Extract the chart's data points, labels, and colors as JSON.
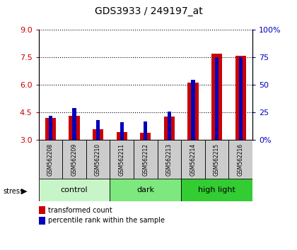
{
  "title": "GDS3933 / 249197_at",
  "samples": [
    "GSM562208",
    "GSM562209",
    "GSM562210",
    "GSM562211",
    "GSM562212",
    "GSM562213",
    "GSM562214",
    "GSM562215",
    "GSM562216"
  ],
  "transformed_count": [
    4.22,
    4.32,
    3.58,
    3.42,
    3.38,
    4.28,
    6.12,
    7.72,
    7.58
  ],
  "percentile_rank": [
    22,
    29,
    18,
    16,
    17,
    26,
    55,
    75,
    75
  ],
  "ylim_left": [
    3,
    9
  ],
  "ylim_right": [
    0,
    100
  ],
  "yticks_left": [
    3,
    4.5,
    6,
    7.5,
    9
  ],
  "yticks_right": [
    0,
    25,
    50,
    75,
    100
  ],
  "groups": [
    {
      "label": "control",
      "indices": [
        0,
        1,
        2
      ],
      "color": "#c8f5c8"
    },
    {
      "label": "dark",
      "indices": [
        3,
        4,
        5
      ],
      "color": "#7de87d"
    },
    {
      "label": "high light",
      "indices": [
        6,
        7,
        8
      ],
      "color": "#33cc33"
    }
  ],
  "red_color": "#cc0000",
  "blue_color": "#0000bb",
  "left_tick_color": "#cc0000",
  "right_tick_color": "#0000bb",
  "right_tick_labels": [
    "0%",
    "25",
    "50",
    "75",
    "100%"
  ],
  "sample_box_color": "#cccccc"
}
